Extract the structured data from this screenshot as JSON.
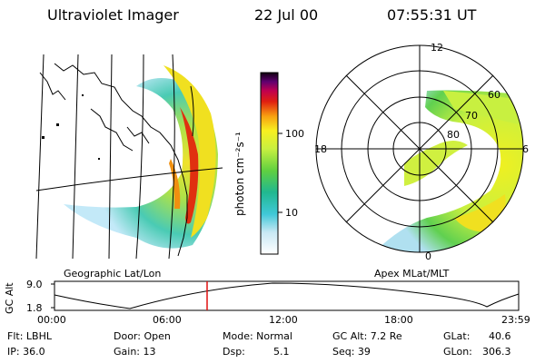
{
  "header": {
    "title": "Ultraviolet Imager",
    "date": "22 Jul 00",
    "time": "07:55:31 UT"
  },
  "geo_panel": {
    "label": "Geographic Lat/Lon"
  },
  "colorbar": {
    "unit_label": "photon cm⁻²s⁻¹",
    "ticks": [
      "100",
      "10"
    ]
  },
  "polar_panel": {
    "label": "Apex MLat/MLT",
    "mlt_labels": [
      "12",
      "18",
      "6",
      "0"
    ],
    "mlat_labels": [
      "60",
      "70",
      "80"
    ]
  },
  "altitude_plot": {
    "ylabel": "GC Alt",
    "yticks": [
      "9.0",
      "1.8"
    ],
    "xticks": [
      "00:00",
      "06:00",
      "12:00",
      "18:00",
      "23:59"
    ],
    "current_time_marker": "07:55"
  },
  "info": {
    "flt": "Flt: LBHL",
    "ip": "IP: 36.0",
    "door": "Door: Open",
    "gain": "Gain: 13",
    "mode": "Mode: Normal",
    "dsp_label": "Dsp:",
    "dsp_value": "5.1",
    "gc_alt": "GC Alt: 7.2 Re",
    "seq": "Seq: 39",
    "glat_label": "GLat:",
    "glat_value": "40.6",
    "glon_label": "GLon:",
    "glon_value": "306.3"
  }
}
